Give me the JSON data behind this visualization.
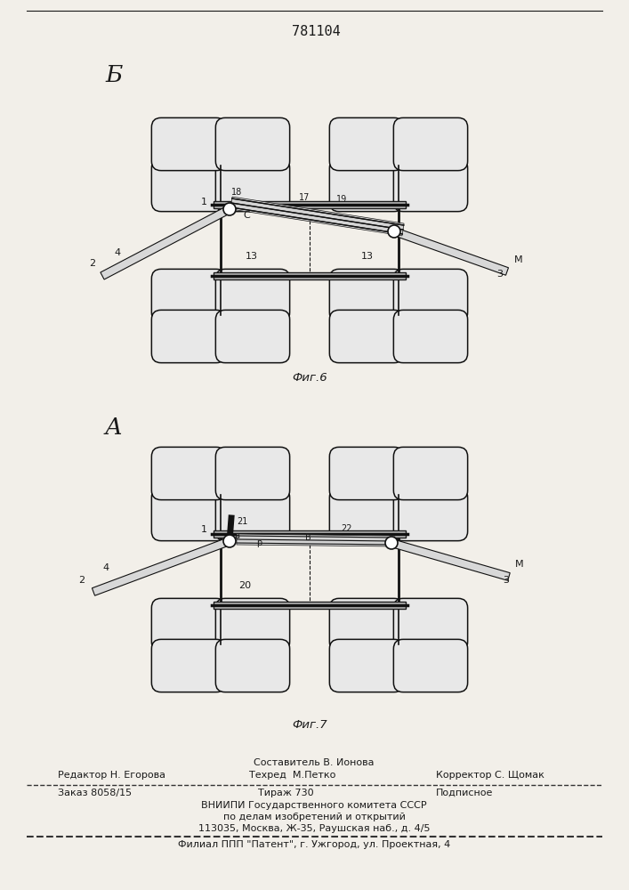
{
  "patent_number": "781104",
  "fig6_label": "Б",
  "fig7_label": "А",
  "fig6_caption": "Фиг.6",
  "fig7_caption": "Фиг.7",
  "footer_composer": "Составитель В. Ионова",
  "footer_editor": "Редактор Н. Егорова",
  "footer_techred": "Техред  М.Петко",
  "footer_corrector": "Корректор С. Щомак",
  "footer_order": "Заказ 8058/15",
  "footer_tirazh": "Тираж 730",
  "footer_podp": "Подписное",
  "footer_vniip1": "ВНИИПИ Государственного комитета СССР",
  "footer_vniip2": "по делам изобретений и открытий",
  "footer_addr": "113035, Москва, Ж-35, Раушская наб., д. 4/5",
  "footer_filial": "Филиал ППП \"Патент\", г. Ужгород, ул. Проектная, 4",
  "bg_color": "#f2efe9",
  "line_color": "#1a1a1a"
}
